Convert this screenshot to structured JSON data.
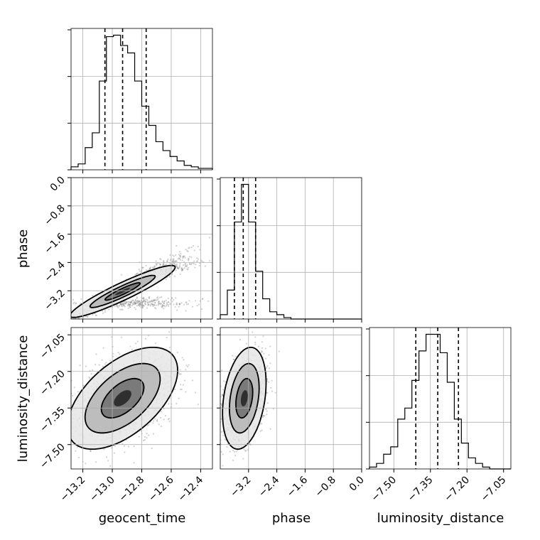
{
  "chart_data": {
    "type": "corner",
    "parameters": [
      "geocent_time",
      "phase",
      "luminosity_distance"
    ],
    "axes": {
      "geocent_time": {
        "lim": [
          -13.28,
          -12.32
        ],
        "ticks": [
          -13.2,
          -13.0,
          -12.8,
          -12.6,
          -12.4
        ],
        "tick_labels": [
          "−13.2",
          "−13.0",
          "−12.8",
          "−12.6",
          "−12.4"
        ]
      },
      "phase": {
        "lim": [
          -4.0,
          0.0
        ],
        "ticks": [
          -3.2,
          -2.4,
          -1.6,
          -0.8,
          0.0
        ],
        "tick_labels": [
          "−3.2",
          "−2.4",
          "−1.6",
          "−0.8",
          "0.0"
        ]
      },
      "luminosity_distance": {
        "lim": [
          -7.6,
          -7.02
        ],
        "ticks": [
          -7.5,
          -7.35,
          -7.2,
          -7.05
        ],
        "tick_labels": [
          "−7.50",
          "−7.35",
          "−7.20",
          "−7.05"
        ]
      }
    },
    "quantiles": {
      "geocent_time": [
        -13.05,
        -12.93,
        -12.77
      ],
      "phase": [
        -3.6,
        -3.35,
        -3.0
      ],
      "luminosity_distance": [
        -7.41,
        -7.32,
        -7.235
      ]
    },
    "histograms": {
      "geocent_time": {
        "edges": [
          -13.28,
          -13.232,
          -13.184,
          -13.136,
          -13.088,
          -13.04,
          -12.992,
          -12.944,
          -12.896,
          -12.848,
          -12.8,
          -12.752,
          -12.704,
          -12.656,
          -12.608,
          -12.56,
          -12.512,
          -12.464,
          -12.416,
          -12.368,
          -12.32
        ],
        "counts": [
          2,
          4,
          15,
          25,
          60,
          90,
          91,
          84,
          79,
          60,
          43,
          30,
          19,
          13,
          9,
          6,
          3,
          2,
          1,
          1
        ]
      },
      "phase": {
        "edges": [
          -4.0,
          -3.8,
          -3.6,
          -3.4,
          -3.2,
          -3.0,
          -2.8,
          -2.6,
          -2.4,
          -2.2,
          -2.0,
          -1.8,
          -1.6,
          -1.4,
          -1.2,
          -1.0,
          -0.8,
          -0.6,
          -0.4,
          -0.2,
          0.0
        ],
        "counts": [
          3,
          20,
          67,
          93,
          67,
          33,
          14,
          5,
          3,
          1,
          0,
          0,
          0,
          0,
          0,
          0,
          0,
          0,
          0,
          0
        ]
      },
      "luminosity_distance": {
        "edges": [
          -7.6,
          -7.571,
          -7.542,
          -7.513,
          -7.484,
          -7.455,
          -7.426,
          -7.397,
          -7.368,
          -7.339,
          -7.31,
          -7.281,
          -7.252,
          -7.223,
          -7.194,
          -7.165,
          -7.136,
          -7.107,
          -7.078,
          -7.049,
          -7.02
        ],
        "counts": [
          1,
          3,
          8,
          12,
          27,
          33,
          48,
          64,
          73,
          73,
          63,
          47,
          27,
          14,
          6,
          3,
          1,
          0,
          0,
          0
        ]
      }
    },
    "pairs": [
      {
        "x": "geocent_time",
        "y": "phase"
      },
      {
        "x": "geocent_time",
        "y": "luminosity_distance"
      },
      {
        "x": "phase",
        "y": "luminosity_distance"
      }
    ]
  }
}
